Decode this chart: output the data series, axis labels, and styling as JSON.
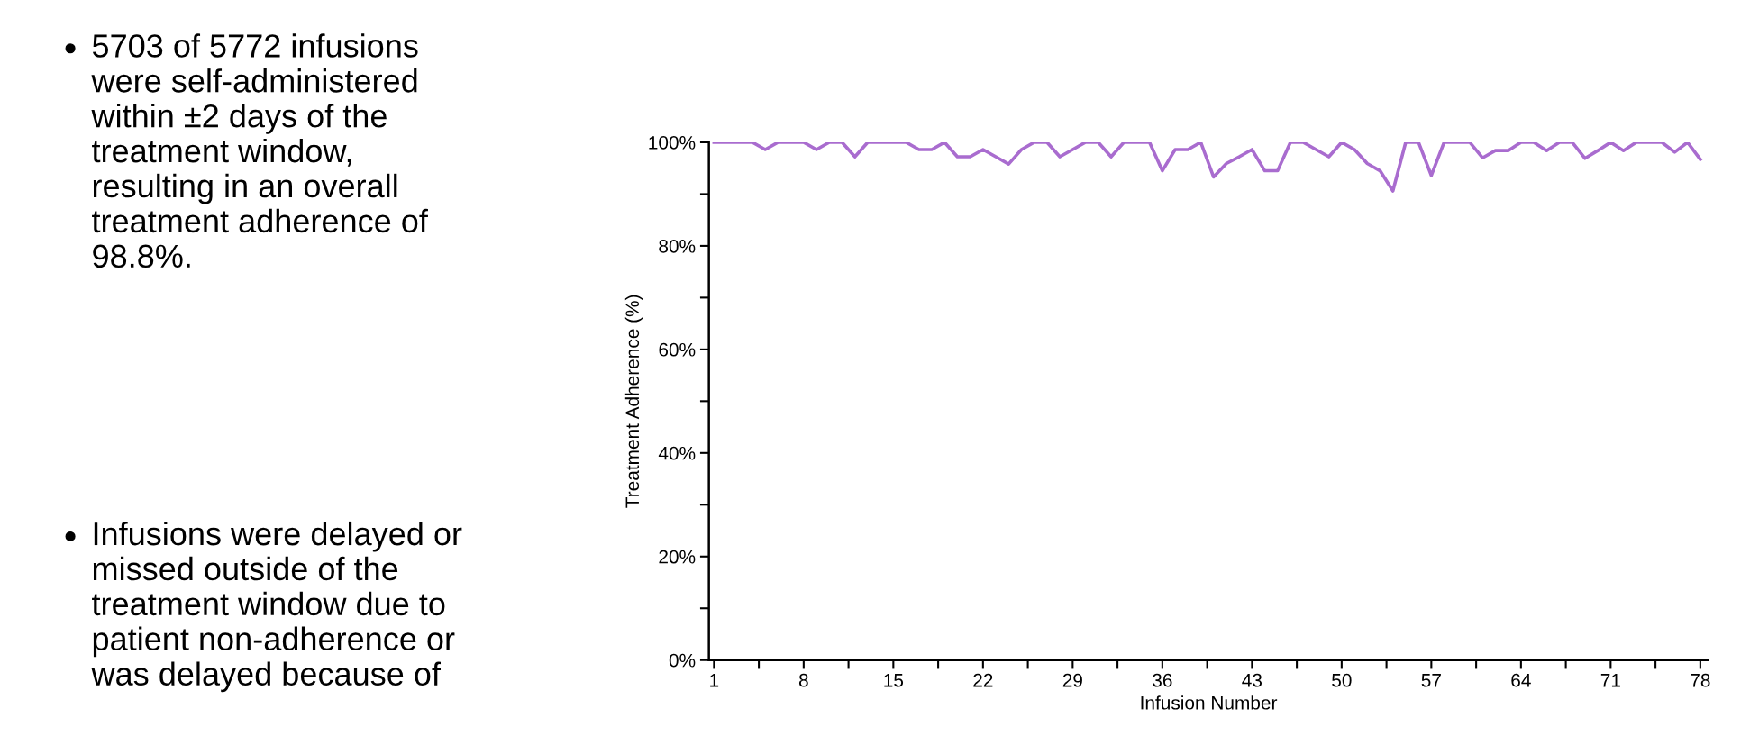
{
  "chart_data": {
    "type": "line",
    "xlabel": "Infusion Number",
    "ylabel": "Treatment Adherence (%)",
    "annotations": [
      "5703 of 5772 infusions\nwere self-administered\nwithin ±2 days of the\ntreatment window,\nresulting in an overall\ntreatment adherence of\n98.8%.",
      "Infusions were delayed or\nmissed outside of the\ntreatment window due to\npatient non-adherence or\nwas delayed because of"
    ],
    "x": [
      1,
      2,
      3,
      4,
      5,
      6,
      7,
      8,
      9,
      10,
      11,
      12,
      13,
      14,
      15,
      16,
      17,
      18,
      19,
      20,
      21,
      22,
      23,
      24,
      25,
      26,
      27,
      28,
      29,
      30,
      31,
      32,
      33,
      34,
      35,
      36,
      37,
      38,
      39,
      40,
      41,
      42,
      43,
      44,
      45,
      46,
      47,
      48,
      49,
      50,
      51,
      52,
      53,
      54,
      55,
      56,
      57,
      58,
      59,
      60,
      61,
      62,
      63,
      64,
      65,
      66,
      67,
      68,
      69,
      70,
      71,
      72,
      73,
      74,
      75,
      76,
      77,
      78
    ],
    "series": [
      {
        "color": "#a96ccf",
        "values": [
          100,
          100,
          100,
          100,
          98.6,
          100,
          100,
          100,
          98.6,
          100,
          100,
          97.2,
          100,
          100,
          100,
          100,
          98.6,
          98.6,
          100,
          97.2,
          97.2,
          98.6,
          97.2,
          95.8,
          98.6,
          100,
          100,
          97.2,
          98.6,
          100,
          100,
          97.2,
          100,
          100,
          100,
          94.5,
          98.6,
          98.6,
          100,
          93.3,
          95.9,
          97.2,
          98.6,
          94.5,
          94.5,
          100,
          100,
          98.6,
          97.2,
          100,
          98.6,
          95.9,
          94.5,
          90.6,
          100,
          100,
          93.6,
          100,
          100,
          100,
          97.0,
          98.4,
          98.4,
          100,
          100,
          98.4,
          100,
          100,
          96.9,
          98.4,
          100,
          98.4,
          100,
          100,
          100,
          98.1,
          100,
          96.7
        ]
      }
    ],
    "xlim": [
      0.6,
      78.6
    ],
    "xticks": [
      1,
      {
        "value": 4.5,
        "label": null
      },
      8,
      {
        "value": 11.5,
        "label": null
      },
      15,
      {
        "value": 18.5,
        "label": null
      },
      22,
      {
        "value": 25.5,
        "label": null
      },
      29,
      {
        "value": 32.5,
        "label": null
      },
      36,
      {
        "value": 39.5,
        "label": null
      },
      43,
      {
        "value": 46.5,
        "label": null
      },
      50,
      {
        "value": 53.5,
        "label": null
      },
      57,
      {
        "value": 60.5,
        "label": null
      },
      64,
      {
        "value": 67.5,
        "label": null
      },
      71,
      {
        "value": 74.5,
        "label": null
      },
      78
    ],
    "ylim": [
      0,
      100
    ],
    "yticks": [
      {
        "value": 0,
        "label": "0%"
      },
      {
        "value": 10,
        "label": null
      },
      {
        "value": 20,
        "label": "20%"
      },
      {
        "value": 30,
        "label": null
      },
      {
        "value": 40,
        "label": "40%"
      },
      {
        "value": 50,
        "label": null
      },
      {
        "value": 60,
        "label": "60%"
      },
      {
        "value": 70,
        "label": null
      },
      {
        "value": 80,
        "label": "80%"
      },
      {
        "value": 90,
        "label": null
      },
      {
        "value": 100,
        "label": "100%"
      }
    ],
    "grid": false,
    "legend": false,
    "marker": "none",
    "line_style": "solid"
  }
}
